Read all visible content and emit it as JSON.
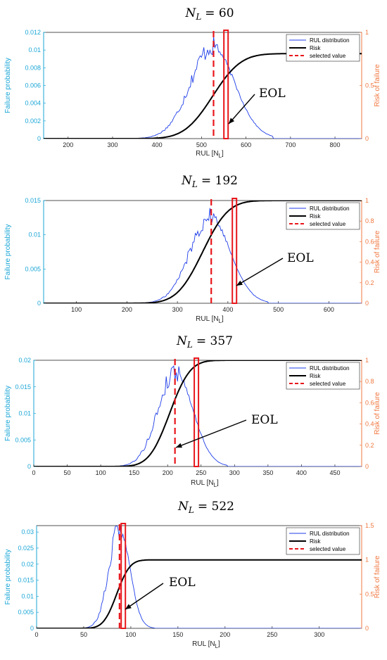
{
  "colors": {
    "distribution": "#1f3ee8",
    "risk": "#000000",
    "selected": "#e8161b",
    "eol_box": "#e8161b",
    "left_axis": "#1aa6d6",
    "right_axis": "#f07840"
  },
  "chart_data": [
    {
      "type": "line",
      "title_var": "N",
      "title_sub": "L",
      "title_value": "= 60",
      "xlabel": "RUL [N",
      "xlabel_sub": "L",
      "xlabel_close": "]",
      "ylabel_left": "Failure probability",
      "ylabel_right": "Risk of failure",
      "xlim": [
        145,
        860
      ],
      "ylim_left": [
        0,
        0.012
      ],
      "ylim_right": [
        0,
        1
      ],
      "xticks": [
        "200",
        "300",
        "400",
        "500",
        "600",
        "700",
        "800"
      ],
      "yticks_left": [
        "0",
        "0.002",
        "0.004",
        "0.006",
        "0.008",
        "0.01",
        "0.012"
      ],
      "yticks_right": [
        "0",
        "0.5",
        "1"
      ],
      "legend": [
        "RUL distribution",
        "Risk",
        "selected value"
      ],
      "legend_position": "top-right",
      "distribution": {
        "mean": 525,
        "sd": 50,
        "peak": 0.0103,
        "min_x": 350,
        "max_x": 660
      },
      "risk": {
        "mean": 525,
        "sd": 50,
        "plateau": 0.8
      },
      "selected_value": 527,
      "eol": 555,
      "annotation": "EOL"
    },
    {
      "type": "line",
      "title_var": "N",
      "title_sub": "L",
      "title_value": "= 192",
      "xlabel": "RUL [N",
      "xlabel_sub": "L",
      "xlabel_close": "]",
      "ylabel_left": "Failure probability",
      "ylabel_right": "Risk of failure",
      "xlim": [
        35,
        665
      ],
      "ylim_left": [
        0,
        0.015
      ],
      "ylim_right": [
        0,
        1
      ],
      "xticks": [
        "100",
        "200",
        "300",
        "400",
        "500",
        "600"
      ],
      "yticks_left": [
        "0",
        "0.005",
        "0.01",
        "0.015"
      ],
      "yticks_right": [
        "0",
        "0.2",
        "0.4",
        "0.6",
        "0.8",
        "1"
      ],
      "legend": [
        "RUL distribution",
        "Risk",
        "selected value"
      ],
      "legend_position": "top-right",
      "distribution": {
        "mean": 365,
        "sd": 40,
        "peak": 0.0125,
        "min_x": 235,
        "max_x": 480
      },
      "risk": {
        "mean": 350,
        "sd": 40,
        "plateau": 1.0
      },
      "selected_value": 367,
      "eol": 413,
      "annotation": "EOL"
    },
    {
      "type": "line",
      "title_var": "N",
      "title_sub": "L",
      "title_value": "= 357",
      "xlabel": "RUL [N",
      "xlabel_sub": "L",
      "xlabel_close": "]",
      "ylabel_left": "Failure probability",
      "ylabel_right": "Risk of failure",
      "xlim": [
        0,
        490
      ],
      "ylim_left": [
        0,
        0.02
      ],
      "ylim_right": [
        0,
        1
      ],
      "xticks": [
        "0",
        "50",
        "100",
        "150",
        "200",
        "250",
        "300",
        "350",
        "400",
        "450"
      ],
      "yticks_left": [
        "0",
        "0.005",
        "0.01",
        "0.015",
        "0.02"
      ],
      "yticks_right": [
        "0",
        "0.2",
        "0.4",
        "0.6",
        "0.8",
        "1"
      ],
      "legend": [
        "RUL distribution",
        "Risk",
        "selected value"
      ],
      "legend_position": "top-right",
      "distribution": {
        "mean": 212,
        "sd": 26,
        "peak": 0.0177,
        "min_x": 125,
        "max_x": 290
      },
      "risk": {
        "mean": 203,
        "sd": 24,
        "plateau": 1.0
      },
      "selected_value": 211,
      "eol": 243,
      "annotation": "EOL"
    },
    {
      "type": "line",
      "title_var": "N",
      "title_sub": "L",
      "title_value": "= 522",
      "xlabel": "RUL [N",
      "xlabel_sub": "L",
      "xlabel_close": "]",
      "ylabel_left": "Failure probability",
      "ylabel_right": "Risk of failure",
      "xlim": [
        0,
        345
      ],
      "ylim_left": [
        0,
        0.032
      ],
      "ylim_right": [
        0,
        1.5
      ],
      "xticks": [
        "0",
        "50",
        "100",
        "150",
        "200",
        "250",
        "300"
      ],
      "yticks_left": [
        "0",
        "0.005",
        "0.01",
        "0.015",
        "0.02",
        "0.025",
        "0.03"
      ],
      "yticks_right": [
        "0",
        "0.5",
        "1",
        "1.5"
      ],
      "legend": [
        "RUL distribution",
        "Risk",
        "selected value"
      ],
      "legend_position": "top-right",
      "distribution": {
        "mean": 88,
        "sd": 11,
        "peak": 0.0312,
        "min_x": 48,
        "max_x": 125
      },
      "risk": {
        "mean": 85,
        "sd": 11,
        "plateau": 1.0
      },
      "selected_value": 88,
      "eol": 92,
      "annotation": "EOL"
    }
  ]
}
